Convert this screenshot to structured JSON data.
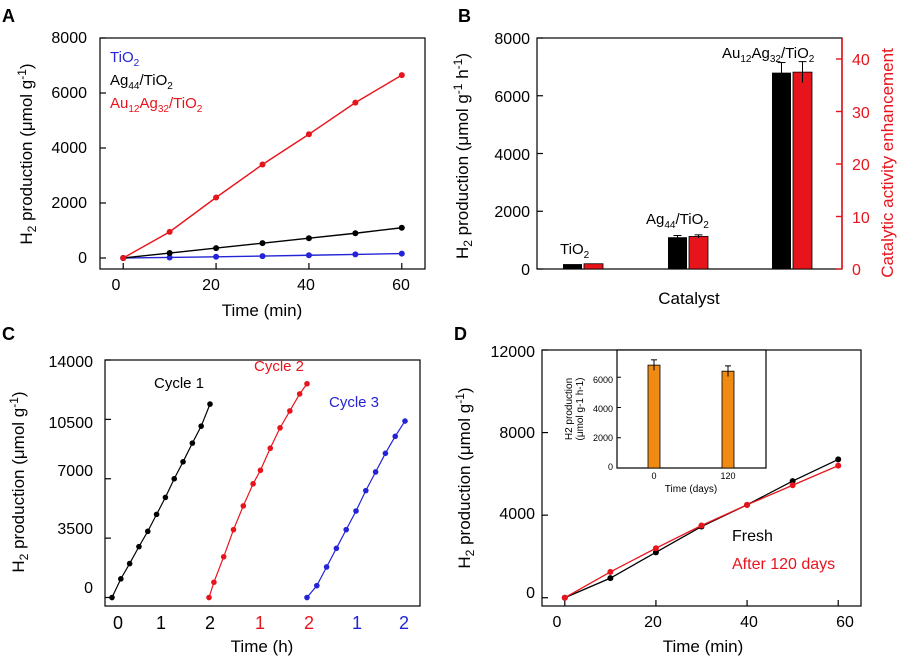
{
  "colors": {
    "black": "#000000",
    "red": "#e8141c",
    "blue": "#2424d6",
    "orange": "#f08a13"
  },
  "chart_data": [
    {
      "panel": "A",
      "type": "line",
      "xlabel": "Time (min)",
      "ylabel": "H2 production (μmol g-1)",
      "xlim": [
        -5,
        65
      ],
      "ylim": [
        -400,
        8000
      ],
      "xticks": [
        0,
        20,
        40,
        60
      ],
      "yticks": [
        0,
        2000,
        4000,
        6000,
        8000
      ],
      "x": [
        0,
        10,
        20,
        30,
        40,
        50,
        60
      ],
      "series": [
        {
          "name": "TiO2",
          "color": "#2424d6",
          "values": [
            0,
            20,
            45,
            70,
            100,
            130,
            160
          ]
        },
        {
          "name": "Ag44/TiO2",
          "color": "#000000",
          "values": [
            0,
            180,
            360,
            540,
            720,
            900,
            1100
          ]
        },
        {
          "name": "Au12Ag32/TiO2",
          "color": "#e8141c",
          "values": [
            0,
            950,
            2200,
            3400,
            4500,
            5650,
            6650
          ]
        }
      ],
      "legend": [
        {
          "base": "TiO",
          "sub": "2",
          "tail": "",
          "sub2": "",
          "tail2": "",
          "color": "#2424d6"
        },
        {
          "base": "Ag",
          "sub": "44",
          "tail": "/TiO",
          "sub2": "2",
          "tail2": "",
          "color": "#000000"
        },
        {
          "base": "Au",
          "sub": "12",
          "tail": "Ag",
          "sub2": "32",
          "tail2": "/TiO2",
          "color": "#e8141c"
        }
      ]
    },
    {
      "panel": "B",
      "type": "bar",
      "xlabel": "Catalyst",
      "ylabel": "H2 production (μmol g-1 h-1)",
      "ylabel_right": "Catalytic activity enhancement",
      "ylim": [
        0,
        8000
      ],
      "ylim_right": [
        0,
        44
      ],
      "yticks": [
        0,
        2000,
        4000,
        6000,
        8000
      ],
      "yticks_right": [
        0,
        10,
        20,
        30,
        40
      ],
      "categories": [
        "TiO2",
        "Ag44/TiO2",
        "Au12Ag32/TiO2"
      ],
      "series": [
        {
          "name": "H2 production",
          "axis": "left",
          "color": "#000000",
          "values": [
            170,
            1100,
            6800
          ],
          "errors": [
            0,
            60,
            350
          ]
        },
        {
          "name": "Enhancement",
          "axis": "right",
          "color": "#e8141c",
          "values": [
            1,
            6.2,
            37.5
          ],
          "errors": [
            0,
            0.3,
            2
          ]
        }
      ],
      "category_labels": [
        {
          "base": "TiO",
          "sub": "2",
          "tail": "",
          "sub2": "",
          "tail2": ""
        },
        {
          "base": "Ag",
          "sub": "44",
          "tail": "/TiO",
          "sub2": "2",
          "tail2": ""
        },
        {
          "base": "Au",
          "sub": "12",
          "tail": "Ag",
          "sub2": "32",
          "tail2": "/TiO2"
        }
      ]
    },
    {
      "panel": "C",
      "type": "line",
      "xlabel": "Time (h)",
      "ylabel": "H2 production (μmol g-1)",
      "ylim": [
        -500,
        14000
      ],
      "yticks": [
        0,
        3500,
        7000,
        10500,
        14000
      ],
      "x_per_cycle": [
        0,
        0.2,
        0.4,
        0.6,
        0.8,
        1.0,
        1.2,
        1.4,
        1.6,
        1.8,
        2.0
      ],
      "xtick_values": [
        0,
        1,
        2
      ],
      "series": [
        {
          "name": "Cycle 1",
          "color": "#000000",
          "values": [
            0,
            1100,
            2000,
            3000,
            3900,
            4900,
            5900,
            7000,
            8000,
            9100,
            10100,
            11400
          ]
        },
        {
          "name": "Cycle 2",
          "color": "#e8141c",
          "values": [
            0,
            900,
            2400,
            4000,
            5400,
            6700,
            7500,
            8800,
            10000,
            11000,
            12000,
            12600
          ]
        },
        {
          "name": "Cycle 3",
          "color": "#2424d6",
          "values": [
            0,
            700,
            1800,
            2900,
            4000,
            5100,
            6300,
            7400,
            8500,
            9500,
            10400
          ]
        }
      ],
      "cycle_x": [
        [
          0,
          0.18,
          0.36,
          0.55,
          0.73,
          0.91,
          1.09,
          1.27,
          1.45,
          1.64,
          1.82,
          2.0
        ],
        [
          0,
          0.1,
          0.3,
          0.5,
          0.7,
          0.9,
          1.05,
          1.25,
          1.45,
          1.65,
          1.85,
          2.0
        ],
        [
          0,
          0.2,
          0.4,
          0.6,
          0.8,
          1.0,
          1.2,
          1.4,
          1.6,
          1.8,
          2.0
        ]
      ]
    },
    {
      "panel": "D",
      "type": "line",
      "xlabel": "Time (min)",
      "ylabel": "H2 production (μmol g-1)",
      "xlim": [
        -5,
        65
      ],
      "ylim": [
        -400,
        12000
      ],
      "xticks": [
        0,
        20,
        40,
        60
      ],
      "yticks": [
        0,
        4000,
        8000,
        12000
      ],
      "x": [
        0,
        10,
        20,
        30,
        40,
        50,
        60
      ],
      "series": [
        {
          "name": "Fresh",
          "color": "#000000",
          "values": [
            0,
            950,
            2200,
            3450,
            4500,
            5650,
            6700
          ]
        },
        {
          "name": "After 120 days",
          "color": "#e8141c",
          "values": [
            0,
            1250,
            2400,
            3500,
            4500,
            5450,
            6400
          ]
        }
      ],
      "inset": {
        "type": "bar",
        "xlabel": "Time (days)",
        "ylabel_line1": "H2 production",
        "ylabel_line2": "(μmol g-1 h-1)",
        "categories": [
          "0",
          "120"
        ],
        "values": [
          6800,
          6400
        ],
        "errors": [
          350,
          350
        ],
        "ylim": [
          0,
          7800
        ],
        "yticks": [
          0,
          2000,
          4000,
          6000
        ],
        "color": "#f08a13"
      }
    }
  ],
  "labels": {
    "panel_a": "A",
    "panel_b": "B",
    "panel_c": "C",
    "panel_d": "D",
    "a_x0": "0",
    "a_x1": "20",
    "a_x2": "40",
    "a_x3": "60",
    "a_y0": "0",
    "a_y1": "2000",
    "a_y2": "4000",
    "a_y3": "6000",
    "a_y4": "8000",
    "b_y0": "0",
    "b_y1": "2000",
    "b_y2": "4000",
    "b_y3": "6000",
    "b_y4": "8000",
    "b_r0": "0",
    "b_r1": "10",
    "b_r2": "20",
    "b_r3": "30",
    "b_r4": "40",
    "c_y0": "0",
    "c_y1": "3500",
    "c_y2": "7000",
    "c_y3": "10500",
    "c_y4": "14000",
    "c_x0": "0",
    "c_x1": "1",
    "c_x2": "2",
    "c_x3": "1",
    "c_x4": "2",
    "c_x5": "1",
    "c_x6": "2",
    "d_x0": "0",
    "d_x1": "20",
    "d_x2": "40",
    "d_x3": "60",
    "d_y0": "0",
    "d_y1": "4000",
    "d_y2": "8000",
    "d_y3": "12000",
    "inset_y0": "0",
    "inset_y1": "2000",
    "inset_y2": "4000",
    "inset_y3": "6000",
    "inset_x0": "0",
    "inset_x1": "120",
    "h2_main": "H",
    "h2_sub": "2",
    "prod_text": " production (μmol g",
    "sup_m1": "-1",
    "close_paren": ")",
    "sup_h": "h",
    "close_paren2": ")"
  }
}
